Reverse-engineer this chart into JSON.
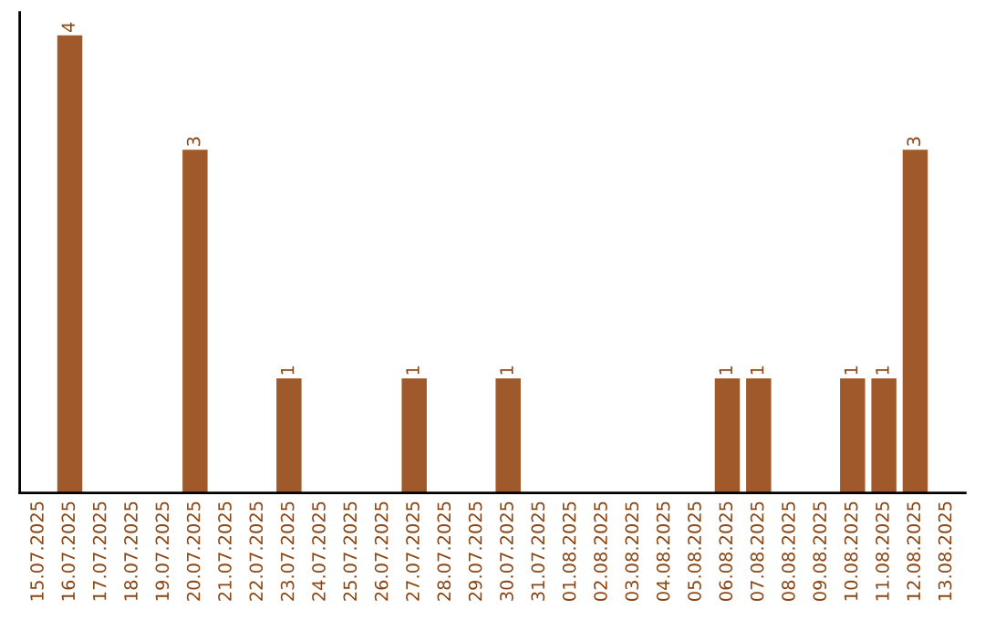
{
  "chart_data": {
    "type": "bar",
    "categories": [
      "15.07.2025",
      "16.07.2025",
      "17.07.2025",
      "18.07.2025",
      "19.07.2025",
      "20.07.2025",
      "21.07.2025",
      "22.07.2025",
      "23.07.2025",
      "24.07.2025",
      "25.07.2025",
      "26.07.2025",
      "27.07.2025",
      "28.07.2025",
      "29.07.2025",
      "30.07.2025",
      "31.07.2025",
      "01.08.2025",
      "02.08.2025",
      "03.08.2025",
      "04.08.2025",
      "05.08.2025",
      "06.08.2025",
      "07.08.2025",
      "08.08.2025",
      "09.08.2025",
      "10.08.2025",
      "11.08.2025",
      "12.08.2025",
      "13.08.2025"
    ],
    "values": [
      0,
      4,
      0,
      0,
      0,
      3,
      0,
      0,
      1,
      0,
      0,
      0,
      1,
      0,
      0,
      1,
      0,
      0,
      0,
      0,
      0,
      0,
      1,
      1,
      0,
      0,
      1,
      1,
      3,
      0
    ],
    "value_labels": [
      null,
      "4",
      null,
      null,
      null,
      "3",
      null,
      null,
      "1",
      null,
      null,
      null,
      "1",
      null,
      null,
      "1",
      null,
      null,
      null,
      null,
      null,
      null,
      "1",
      "1",
      null,
      null,
      "1",
      "1",
      "3",
      null
    ],
    "color": "#a0592b",
    "grid": false,
    "legend": false
  }
}
